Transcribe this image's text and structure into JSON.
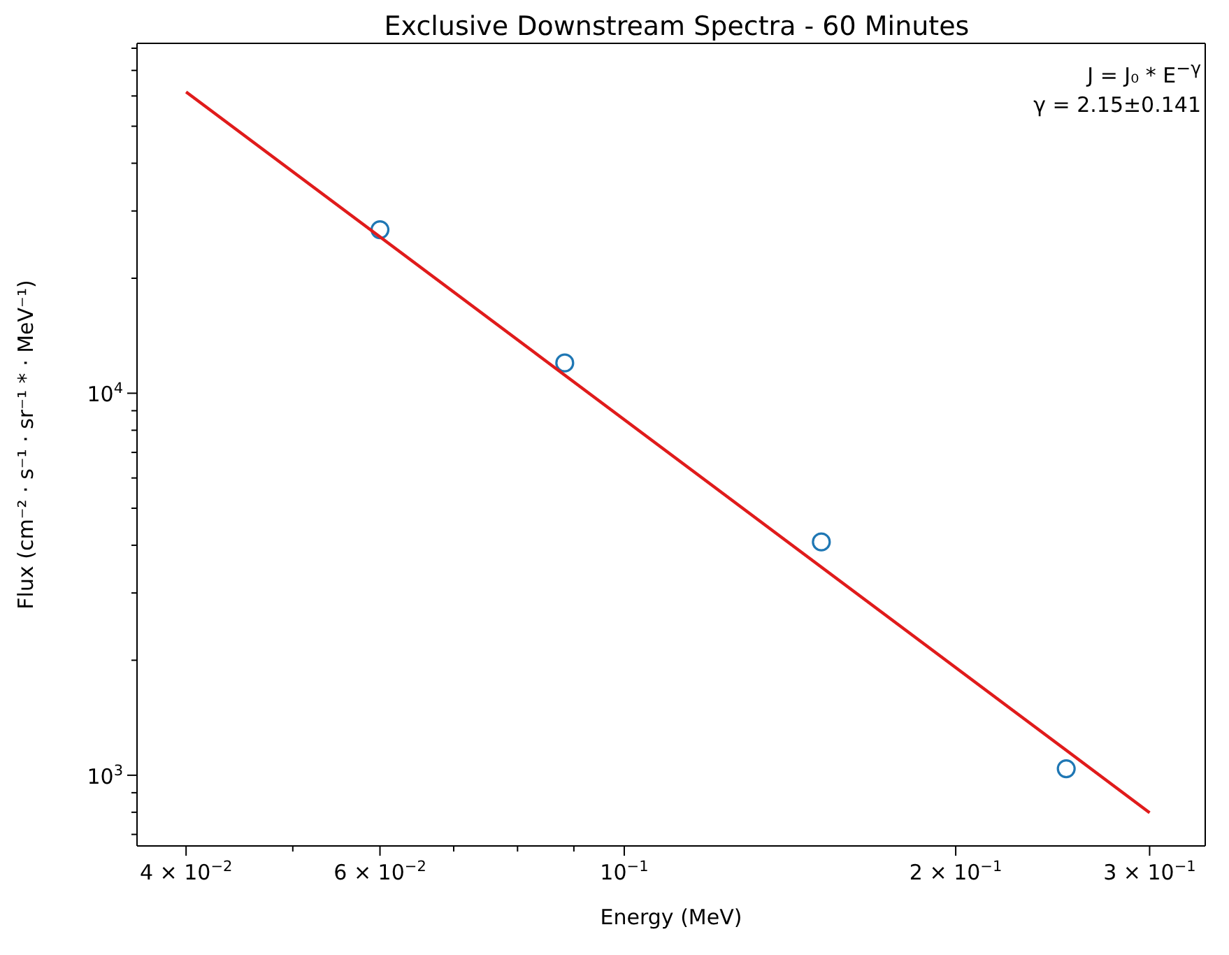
{
  "chart_data": {
    "type": "scatter",
    "title": "Exclusive Downstream Spectra - 60 Minutes",
    "xlabel": "Energy (MeV)",
    "ylabel": "Flux (cm⁻² · s⁻¹ · sr⁻¹ * · MeV⁻¹)",
    "annotations": [
      "J = J₀ * E$^{−γ}$",
      "γ = 2.15±0.141"
    ],
    "log": "xy",
    "grid": false,
    "legend": false,
    "marker": "circle",
    "xlim": [
      0.0361,
      0.337
    ],
    "ylim": [
      653,
      82400
    ],
    "xticks": [
      {
        "value": 0.04,
        "label": "4 × 10$^{−2}$"
      },
      {
        "value": 0.05,
        "label": null
      },
      {
        "value": 0.06,
        "label": "6 × 10$^{−2}$"
      },
      {
        "value": 0.07,
        "label": null
      },
      {
        "value": 0.08,
        "label": null
      },
      {
        "value": 0.09,
        "label": null
      },
      {
        "value": 0.1,
        "label": "10$^{−1}$"
      },
      {
        "value": 0.2,
        "label": "2 × 10$^{−1}$"
      },
      {
        "value": 0.3,
        "label": "3 × 10$^{−1}$"
      }
    ],
    "yticks": [
      {
        "value": 700,
        "label": null
      },
      {
        "value": 800,
        "label": null
      },
      {
        "value": 900,
        "label": null
      },
      {
        "value": 1000,
        "label": "10$^{3}$"
      },
      {
        "value": 2000,
        "label": null
      },
      {
        "value": 3000,
        "label": null
      },
      {
        "value": 4000,
        "label": null
      },
      {
        "value": 5000,
        "label": null
      },
      {
        "value": 6000,
        "label": null
      },
      {
        "value": 7000,
        "label": null
      },
      {
        "value": 8000,
        "label": null
      },
      {
        "value": 9000,
        "label": null
      },
      {
        "value": 10000,
        "label": "10$^{4}$"
      },
      {
        "value": 20000,
        "label": null
      },
      {
        "value": 30000,
        "label": null
      },
      {
        "value": 40000,
        "label": null
      },
      {
        "value": 50000,
        "label": null
      },
      {
        "value": 60000,
        "label": null
      },
      {
        "value": 70000,
        "label": null
      },
      {
        "value": 80000,
        "label": null
      }
    ],
    "series": [
      {
        "type": "scatter",
        "color": "#1f77b4",
        "x": [
          0.06,
          0.0883,
          0.151,
          0.252
        ],
        "values": [
          26800,
          12000,
          4080,
          1040
        ]
      },
      {
        "type": "line",
        "color": "#e01b1b",
        "line_style": "solid",
        "marker": "none",
        "x": [
          0.04,
          0.3
        ],
        "values": [
          61500,
          798
        ]
      }
    ]
  }
}
